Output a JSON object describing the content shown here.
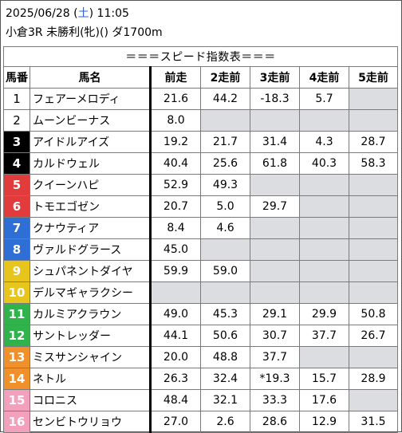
{
  "header": {
    "date": "2025/06/28",
    "weekday": "土",
    "time": "11:05",
    "race": "小倉3R 未勝利(牝)() ダ1700m"
  },
  "table_title": "＝＝＝スピード指数表＝＝＝",
  "columns": [
    "馬番",
    "馬名",
    "前走",
    "2走前",
    "3走前",
    "4走前",
    "5走前"
  ],
  "colors": {
    "frame_1": "#ffffff",
    "frame_2": "#000000",
    "frame_3": "#e23b3b",
    "frame_4": "#2e6fd6",
    "frame_5": "#e8c51d",
    "frame_6": "#2fb34a",
    "frame_7": "#f0902a",
    "frame_8": "#f3a0bd",
    "blank_cell": "#dcdde1"
  },
  "rows": [
    {
      "no": "1",
      "name": "フェアーメロディ",
      "v": [
        "21.6",
        "44.2",
        "-18.3",
        "5.7",
        ""
      ],
      "frame": 1
    },
    {
      "no": "2",
      "name": "ムーンビーナス",
      "v": [
        "8.0",
        "",
        "",
        "",
        ""
      ],
      "frame": 1
    },
    {
      "no": "3",
      "name": "アイドルアイズ",
      "v": [
        "19.2",
        "21.7",
        "31.4",
        "4.3",
        "28.7"
      ],
      "frame": 2
    },
    {
      "no": "4",
      "name": "カルドウェル",
      "v": [
        "40.4",
        "25.6",
        "61.8",
        "40.3",
        "58.3"
      ],
      "frame": 2
    },
    {
      "no": "5",
      "name": "クイーンハピ",
      "v": [
        "52.9",
        "49.3",
        "",
        "",
        ""
      ],
      "frame": 3
    },
    {
      "no": "6",
      "name": "トモエゴゼン",
      "v": [
        "20.7",
        "5.0",
        "29.7",
        "",
        ""
      ],
      "frame": 3
    },
    {
      "no": "7",
      "name": "クナウティア",
      "v": [
        "8.4",
        "4.6",
        "",
        "",
        ""
      ],
      "frame": 4
    },
    {
      "no": "8",
      "name": "ヴァルドグラース",
      "v": [
        "45.0",
        "",
        "",
        "",
        ""
      ],
      "frame": 4
    },
    {
      "no": "9",
      "name": "シュパネントダイヤ",
      "v": [
        "59.9",
        "59.0",
        "",
        "",
        ""
      ],
      "frame": 5
    },
    {
      "no": "10",
      "name": "デルマギャラクシー",
      "v": [
        "",
        "",
        "",
        "",
        ""
      ],
      "frame": 5
    },
    {
      "no": "11",
      "name": "カルミアクラウン",
      "v": [
        "49.0",
        "45.3",
        "29.1",
        "29.9",
        "50.8"
      ],
      "frame": 6
    },
    {
      "no": "12",
      "name": "サントレッダー",
      "v": [
        "44.1",
        "50.6",
        "30.7",
        "37.7",
        "26.7"
      ],
      "frame": 6
    },
    {
      "no": "13",
      "name": "ミスサンシャイン",
      "v": [
        "20.0",
        "48.8",
        "37.7",
        "",
        ""
      ],
      "frame": 7
    },
    {
      "no": "14",
      "name": "ネトル",
      "v": [
        "26.3",
        "32.4",
        "*19.3",
        "15.7",
        "28.9"
      ],
      "frame": 7
    },
    {
      "no": "15",
      "name": "コロニス",
      "v": [
        "48.4",
        "32.1",
        "33.3",
        "17.6",
        ""
      ],
      "frame": 8
    },
    {
      "no": "16",
      "name": "センビトウリョウ",
      "v": [
        "27.0",
        "2.6",
        "28.6",
        "12.9",
        "31.5"
      ],
      "frame": 8
    }
  ]
}
